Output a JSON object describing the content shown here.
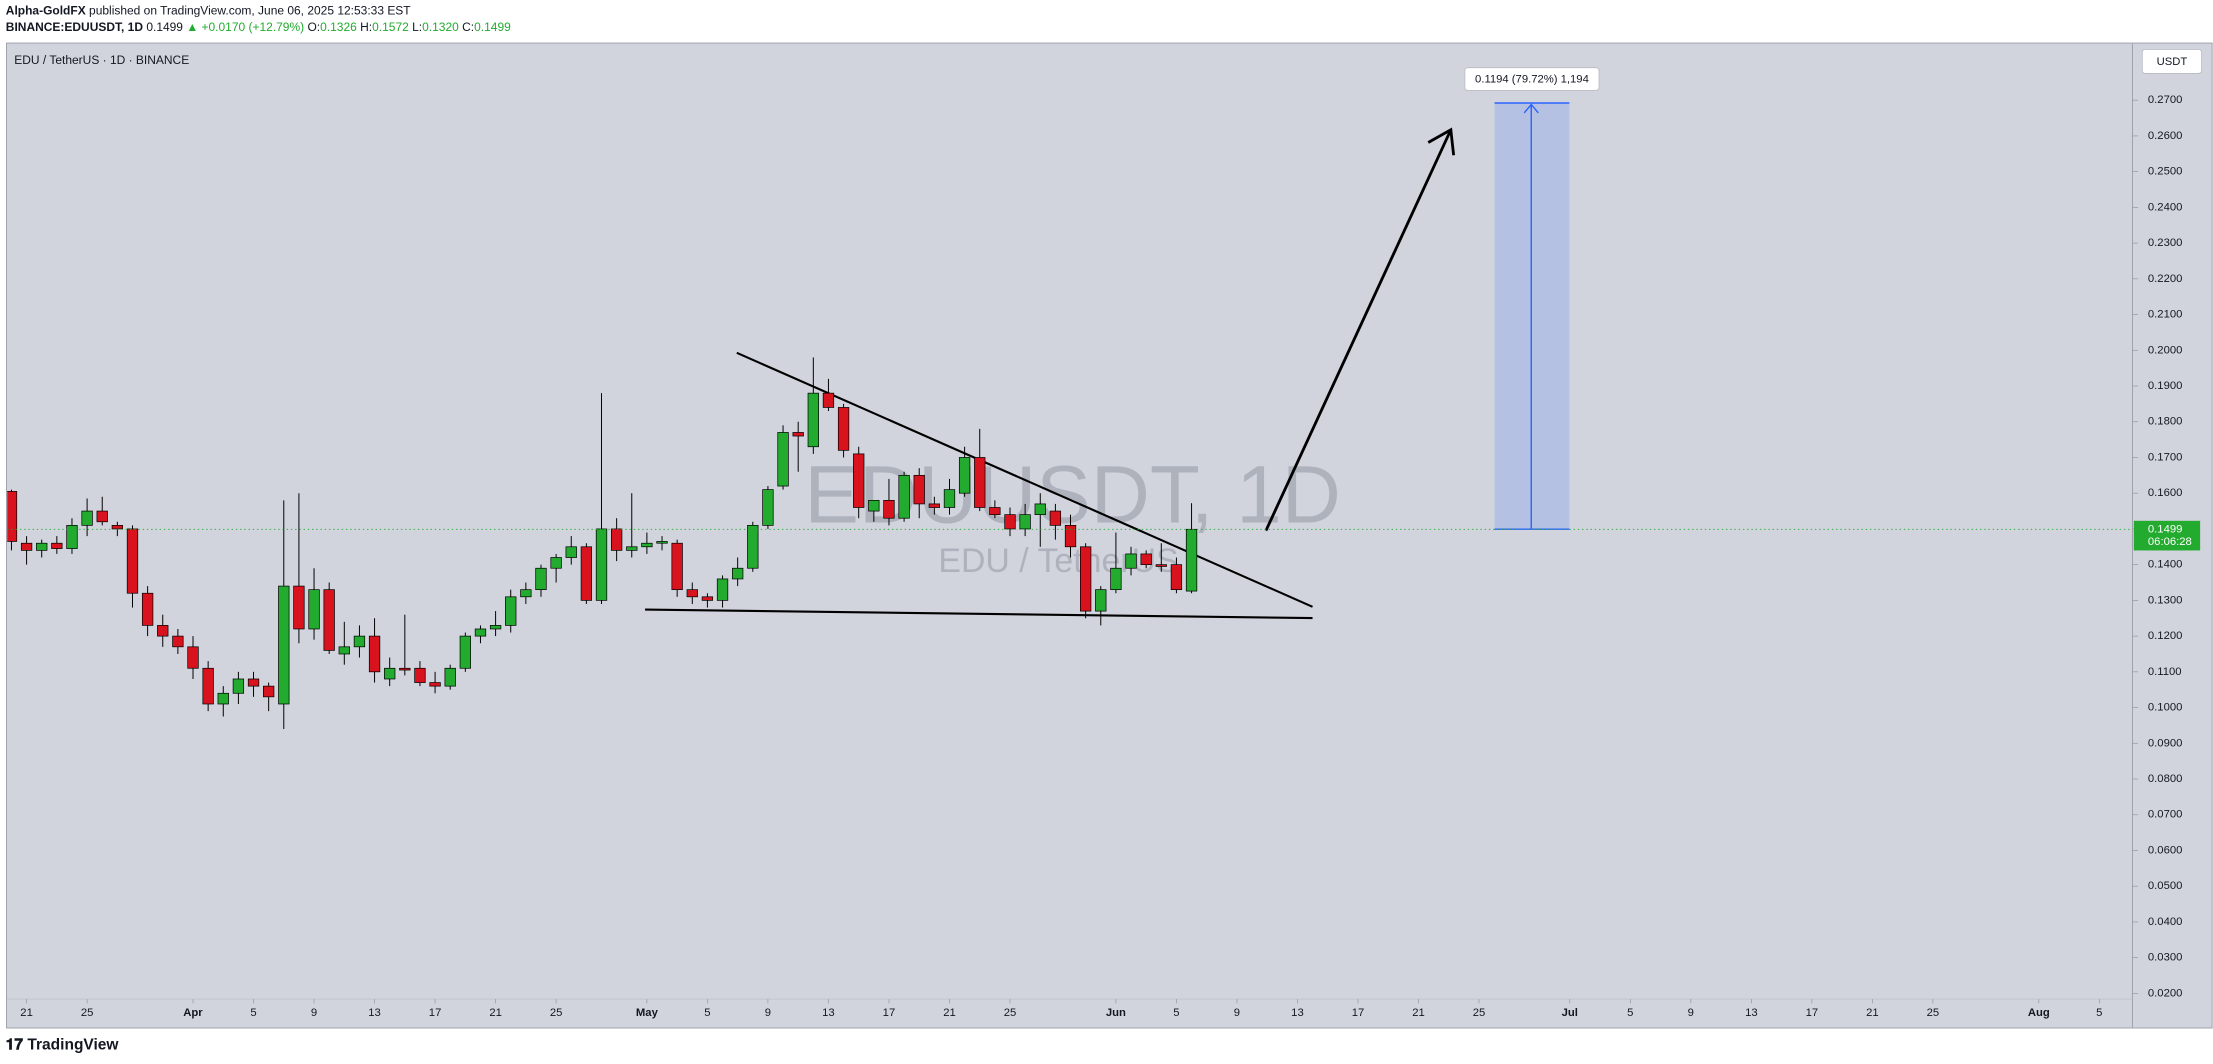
{
  "header": {
    "author": "Alpha-GoldFX",
    "published": "published on TradingView.com, June 06, 2025 12:53:33 EST",
    "symbol": "BINANCE:EDUUSDT, 1D",
    "last": "0.1499",
    "change": "▲ +0.0170 (+12.79%)",
    "ohlc": [
      {
        "label": "O:",
        "value": "0.1326"
      },
      {
        "label": "H:",
        "value": "0.1572"
      },
      {
        "label": "L:",
        "value": "0.1320"
      },
      {
        "label": "C:",
        "value": "0.1499"
      }
    ]
  },
  "footer": {
    "logo": "TradingView"
  },
  "chart_data": {
    "type": "candlestick",
    "title": "EDU / TetherUS · 1D · BINANCE",
    "currency": "USDT",
    "watermark": "EDUUSDT, 1D",
    "watermark_subtitle": "EDU / TetherUS",
    "up_color": "#22ab2e",
    "down_color": "#d9131e",
    "last_price": 0.1499,
    "countdown": "06:06:28",
    "projection_label": "0.1194 (79.72%) 1,194",
    "x": [
      "2025-03-20",
      "2025-03-21",
      "2025-03-22",
      "2025-03-23",
      "2025-03-24",
      "2025-03-25",
      "2025-03-26",
      "2025-03-27",
      "2025-03-28",
      "2025-03-29",
      "2025-03-30",
      "2025-03-31",
      "2025-04-01",
      "2025-04-02",
      "2025-04-03",
      "2025-04-04",
      "2025-04-05",
      "2025-04-06",
      "2025-04-07",
      "2025-04-08",
      "2025-04-09",
      "2025-04-10",
      "2025-04-11",
      "2025-04-12",
      "2025-04-13",
      "2025-04-14",
      "2025-04-15",
      "2025-04-16",
      "2025-04-17",
      "2025-04-18",
      "2025-04-19",
      "2025-04-20",
      "2025-04-21",
      "2025-04-22",
      "2025-04-23",
      "2025-04-24",
      "2025-04-25",
      "2025-04-26",
      "2025-04-27",
      "2025-04-28",
      "2025-04-29",
      "2025-04-30",
      "2025-05-01",
      "2025-05-02",
      "2025-05-03",
      "2025-05-04",
      "2025-05-05",
      "2025-05-06",
      "2025-05-07",
      "2025-05-08",
      "2025-05-09",
      "2025-05-10",
      "2025-05-11",
      "2025-05-12",
      "2025-05-13",
      "2025-05-14",
      "2025-05-15",
      "2025-05-16",
      "2025-05-17",
      "2025-05-18",
      "2025-05-19",
      "2025-05-20",
      "2025-05-21",
      "2025-05-22",
      "2025-05-23",
      "2025-05-24",
      "2025-05-25",
      "2025-05-26",
      "2025-05-27",
      "2025-05-28",
      "2025-05-29",
      "2025-05-30",
      "2025-05-31",
      "2025-06-01",
      "2025-06-02",
      "2025-06-03",
      "2025-06-04",
      "2025-06-05",
      "2025-06-06"
    ],
    "open": [
      0.1605,
      0.146,
      0.144,
      0.146,
      0.1445,
      0.151,
      0.155,
      0.151,
      0.15,
      0.132,
      0.123,
      0.12,
      0.117,
      0.111,
      0.101,
      0.104,
      0.108,
      0.106,
      0.101,
      0.134,
      0.122,
      0.133,
      0.115,
      0.117,
      0.12,
      0.108,
      0.111,
      0.111,
      0.107,
      0.106,
      0.111,
      0.12,
      0.122,
      0.123,
      0.131,
      0.133,
      0.139,
      0.142,
      0.145,
      0.13,
      0.15,
      0.144,
      0.145,
      0.146,
      0.146,
      0.133,
      0.131,
      0.13,
      0.136,
      0.139,
      0.151,
      0.162,
      0.177,
      0.173,
      0.188,
      0.184,
      0.171,
      0.155,
      0.158,
      0.153,
      0.165,
      0.157,
      0.156,
      0.16,
      0.17,
      0.156,
      0.154,
      0.15,
      0.154,
      0.155,
      0.151,
      0.145,
      0.127,
      0.133,
      0.139,
      0.143,
      0.14,
      0.14,
      0.1326
    ],
    "high": [
      0.161,
      0.148,
      0.147,
      0.148,
      0.153,
      0.1585,
      0.159,
      0.152,
      0.151,
      0.134,
      0.126,
      0.122,
      0.12,
      0.113,
      0.106,
      0.11,
      0.11,
      0.107,
      0.158,
      0.16,
      0.139,
      0.135,
      0.124,
      0.123,
      0.125,
      0.114,
      0.126,
      0.113,
      0.11,
      0.112,
      0.121,
      0.123,
      0.127,
      0.133,
      0.135,
      0.14,
      0.143,
      0.148,
      0.146,
      0.188,
      0.153,
      0.16,
      0.149,
      0.148,
      0.147,
      0.135,
      0.132,
      0.137,
      0.142,
      0.152,
      0.162,
      0.179,
      0.18,
      0.198,
      0.192,
      0.185,
      0.173,
      0.158,
      0.164,
      0.166,
      0.167,
      0.159,
      0.164,
      0.173,
      0.178,
      0.158,
      0.156,
      0.157,
      0.16,
      0.157,
      0.154,
      0.146,
      0.134,
      0.149,
      0.145,
      0.144,
      0.146,
      0.142,
      0.1572
    ],
    "low": [
      0.144,
      0.14,
      0.142,
      0.143,
      0.143,
      0.148,
      0.151,
      0.148,
      0.128,
      0.12,
      0.117,
      0.115,
      0.108,
      0.099,
      0.0975,
      0.101,
      0.103,
      0.099,
      0.094,
      0.118,
      0.119,
      0.115,
      0.112,
      0.114,
      0.107,
      0.106,
      0.109,
      0.106,
      0.104,
      0.105,
      0.11,
      0.118,
      0.12,
      0.121,
      0.129,
      0.131,
      0.135,
      0.14,
      0.129,
      0.129,
      0.141,
      0.142,
      0.143,
      0.144,
      0.131,
      0.129,
      0.128,
      0.128,
      0.134,
      0.138,
      0.15,
      0.161,
      0.166,
      0.171,
      0.183,
      0.17,
      0.153,
      0.152,
      0.151,
      0.152,
      0.153,
      0.154,
      0.154,
      0.159,
      0.155,
      0.153,
      0.148,
      0.148,
      0.145,
      0.147,
      0.142,
      0.125,
      0.123,
      0.132,
      0.137,
      0.139,
      0.138,
      0.132,
      0.132
    ],
    "close": [
      0.1465,
      0.144,
      0.146,
      0.1445,
      0.151,
      0.155,
      0.152,
      0.15,
      0.132,
      0.123,
      0.12,
      0.117,
      0.111,
      0.101,
      0.104,
      0.108,
      0.106,
      0.103,
      0.134,
      0.122,
      0.133,
      0.116,
      0.117,
      0.12,
      0.11,
      0.111,
      0.1105,
      0.107,
      0.106,
      0.111,
      0.12,
      0.122,
      0.123,
      0.131,
      0.133,
      0.139,
      0.142,
      0.145,
      0.13,
      0.15,
      0.144,
      0.145,
      0.146,
      0.1465,
      0.133,
      0.131,
      0.13,
      0.136,
      0.139,
      0.151,
      0.161,
      0.177,
      0.176,
      0.188,
      0.184,
      0.172,
      0.156,
      0.158,
      0.153,
      0.165,
      0.157,
      0.156,
      0.161,
      0.17,
      0.156,
      0.154,
      0.15,
      0.154,
      0.157,
      0.151,
      0.145,
      0.127,
      0.133,
      0.139,
      0.143,
      0.14,
      0.1395,
      0.133,
      0.1499
    ],
    "xlim": [
      "2025-03-20",
      "2025-08-07"
    ],
    "xticks": [
      {
        "value": "2025-03-21",
        "label": "21"
      },
      {
        "value": "2025-03-25",
        "label": "25"
      },
      {
        "value": "2025-04-01",
        "label": "Apr"
      },
      {
        "value": "2025-04-05",
        "label": "5"
      },
      {
        "value": "2025-04-09",
        "label": "9"
      },
      {
        "value": "2025-04-13",
        "label": "13"
      },
      {
        "value": "2025-04-17",
        "label": "17"
      },
      {
        "value": "2025-04-21",
        "label": "21"
      },
      {
        "value": "2025-04-25",
        "label": "25"
      },
      {
        "value": "2025-05-01",
        "label": "May"
      },
      {
        "value": "2025-05-05",
        "label": "5"
      },
      {
        "value": "2025-05-09",
        "label": "9"
      },
      {
        "value": "2025-05-13",
        "label": "13"
      },
      {
        "value": "2025-05-17",
        "label": "17"
      },
      {
        "value": "2025-05-21",
        "label": "21"
      },
      {
        "value": "2025-05-25",
        "label": "25"
      },
      {
        "value": "2025-06-01",
        "label": "Jun"
      },
      {
        "value": "2025-06-05",
        "label": "5"
      },
      {
        "value": "2025-06-09",
        "label": "9"
      },
      {
        "value": "2025-06-13",
        "label": "13"
      },
      {
        "value": "2025-06-17",
        "label": "17"
      },
      {
        "value": "2025-06-21",
        "label": "21"
      },
      {
        "value": "2025-06-25",
        "label": "25"
      },
      {
        "value": "2025-07-01",
        "label": "Jul"
      },
      {
        "value": "2025-07-05",
        "label": "5"
      },
      {
        "value": "2025-07-09",
        "label": "9"
      },
      {
        "value": "2025-07-13",
        "label": "13"
      },
      {
        "value": "2025-07-17",
        "label": "17"
      },
      {
        "value": "2025-07-21",
        "label": "21"
      },
      {
        "value": "2025-07-25",
        "label": "25"
      },
      {
        "value": "2025-08-01",
        "label": "Aug"
      },
      {
        "value": "2025-08-05",
        "label": "5"
      }
    ],
    "ylim": [
      0.0109,
      0.2858
    ],
    "yticks": [
      {
        "value": 0.27,
        "label": "0.2700"
      },
      {
        "value": 0.26,
        "label": "0.2600"
      },
      {
        "value": 0.25,
        "label": "0.2500"
      },
      {
        "value": 0.24,
        "label": "0.2400"
      },
      {
        "value": 0.23,
        "label": "0.2300"
      },
      {
        "value": 0.22,
        "label": "0.2200"
      },
      {
        "value": 0.21,
        "label": "0.2100"
      },
      {
        "value": 0.2,
        "label": "0.2000"
      },
      {
        "value": 0.19,
        "label": "0.1900"
      },
      {
        "value": 0.18,
        "label": "0.1800"
      },
      {
        "value": 0.17,
        "label": "0.1700"
      },
      {
        "value": 0.16,
        "label": "0.1600"
      },
      {
        "value": 0.15,
        "label": "0.1500"
      },
      {
        "value": 0.14,
        "label": "0.1400"
      },
      {
        "value": 0.13,
        "label": "0.1300"
      },
      {
        "value": 0.12,
        "label": "0.1200"
      },
      {
        "value": 0.11,
        "label": "0.1100"
      },
      {
        "value": 0.1,
        "label": "0.1000"
      },
      {
        "value": 0.09,
        "label": "0.0900"
      },
      {
        "value": 0.08,
        "label": "0.0800"
      },
      {
        "value": 0.07,
        "label": "0.0700"
      },
      {
        "value": 0.06,
        "label": "0.0600"
      },
      {
        "value": 0.05,
        "label": "0.0500"
      },
      {
        "value": 0.04,
        "label": "0.0400"
      },
      {
        "value": 0.03,
        "label": "0.0300"
      },
      {
        "value": 0.02,
        "label": "0.0200"
      }
    ],
    "grid": false
  }
}
